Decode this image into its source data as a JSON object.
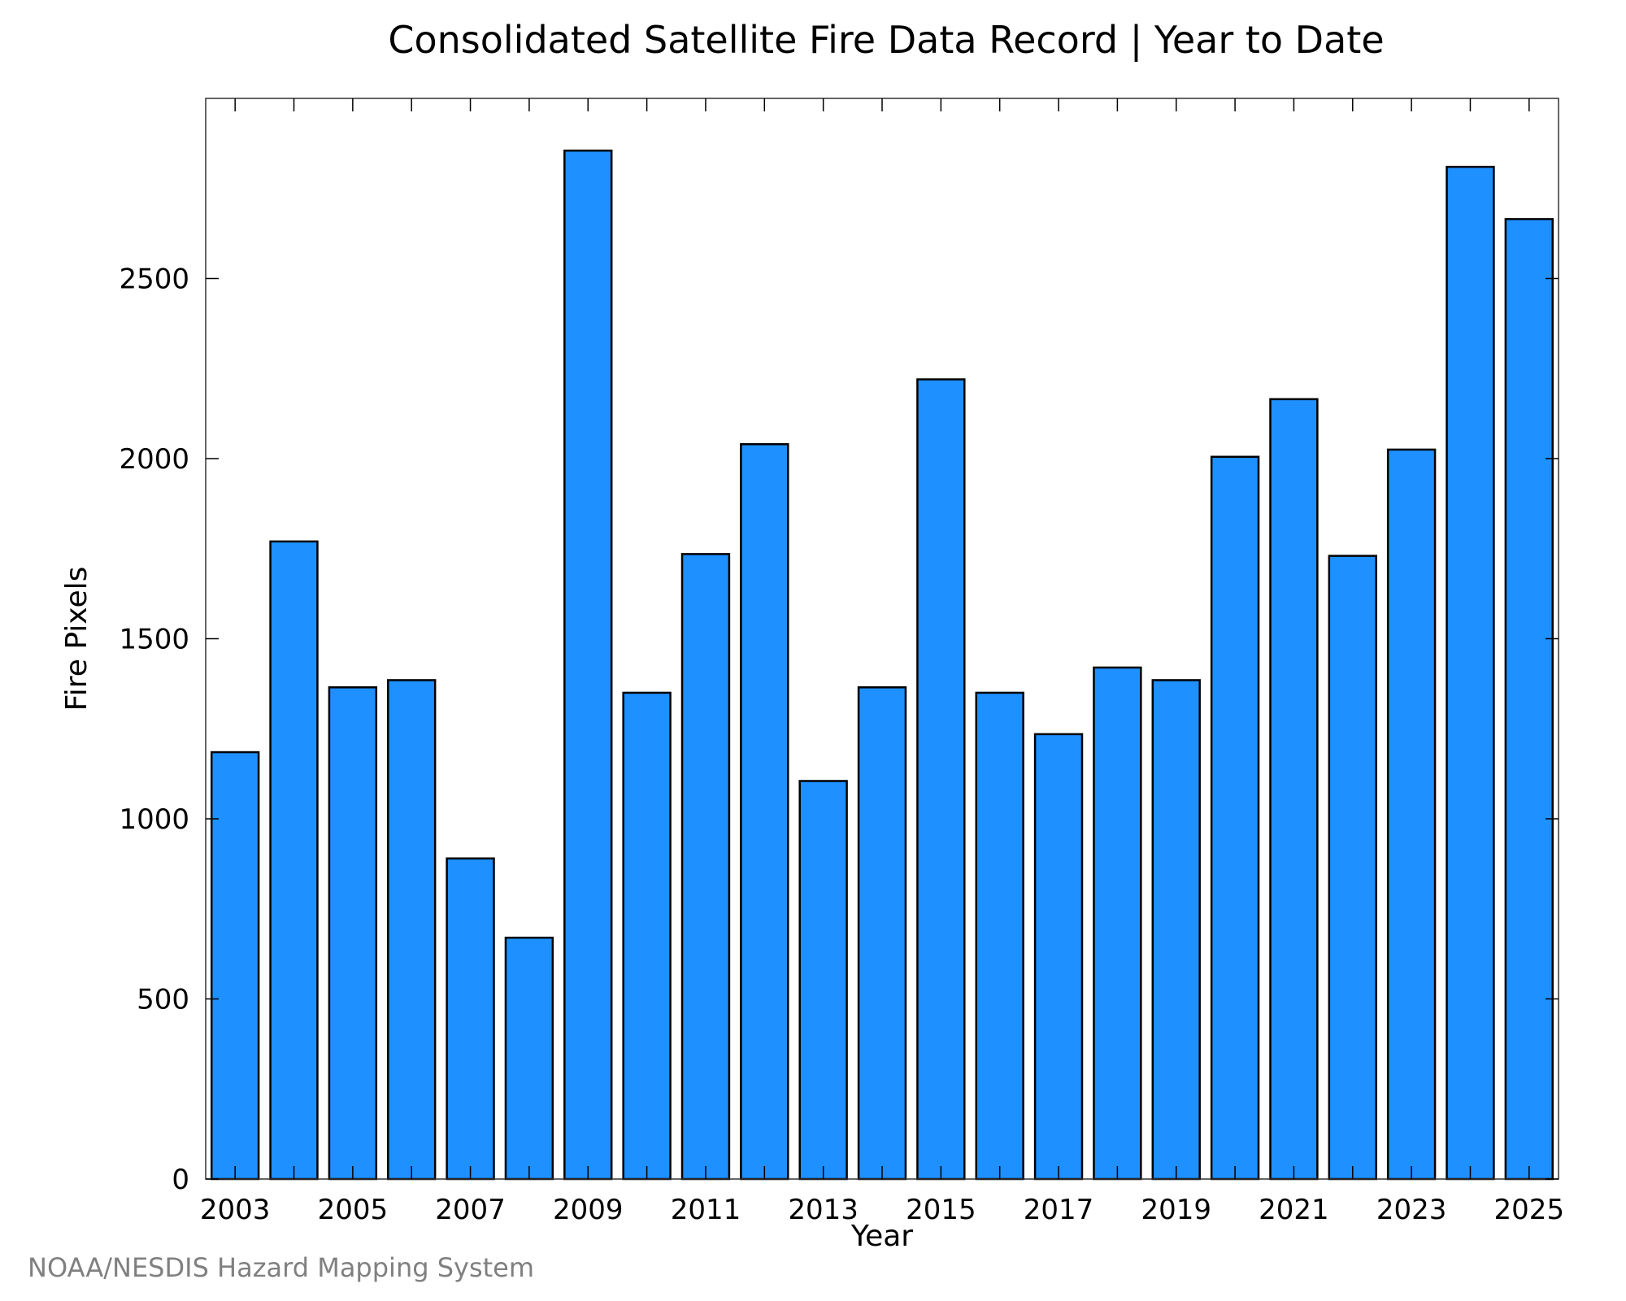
{
  "chart_data": {
    "type": "bar",
    "title": "Consolidated Satellite Fire Data Record | Year to Date",
    "xlabel": "Year",
    "ylabel": "Fire Pixels",
    "categories": [
      "2003",
      "2004",
      "2005",
      "2006",
      "2007",
      "2008",
      "2009",
      "2010",
      "2011",
      "2012",
      "2013",
      "2014",
      "2015",
      "2016",
      "2017",
      "2018",
      "2019",
      "2020",
      "2021",
      "2022",
      "2023",
      "2024",
      "2025"
    ],
    "x_tick_labels": [
      "2003",
      "2005",
      "2007",
      "2009",
      "2011",
      "2013",
      "2015",
      "2017",
      "2019",
      "2021",
      "2023",
      "2025"
    ],
    "values": [
      1185,
      1770,
      1365,
      1385,
      890,
      670,
      2855,
      1350,
      1735,
      2040,
      1105,
      1365,
      2220,
      1350,
      1235,
      1420,
      1385,
      2005,
      2165,
      1730,
      2025,
      2810,
      2665
    ],
    "ylim": [
      0,
      3000
    ],
    "y_ticks": [
      0,
      500,
      1000,
      1500,
      2000,
      2500
    ],
    "grid": false,
    "colors": {
      "bar_fill": "#1e90ff",
      "bar_stroke": "#000000",
      "axis": "#000000"
    }
  },
  "footer": {
    "source": "NOAA/NESDIS Hazard Mapping System"
  }
}
